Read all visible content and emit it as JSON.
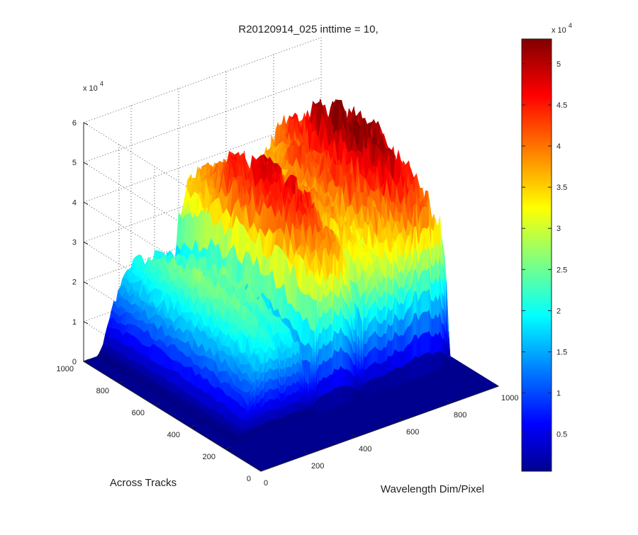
{
  "chart_data": {
    "type": "surface",
    "title": "R20120914_025 inttime = 10,",
    "xlabel": "Wavelength Dim/Pixel",
    "ylabel": "Across Tracks",
    "zlabel": "",
    "x_ticks": [
      "0",
      "200",
      "400",
      "600",
      "800",
      "1000"
    ],
    "y_ticks": [
      "0",
      "200",
      "400",
      "600",
      "800",
      "1000"
    ],
    "z_ticks": [
      "0",
      "1",
      "2",
      "3",
      "4",
      "5",
      "6"
    ],
    "z_multiplier_base": "x 10",
    "z_multiplier_exp": "4",
    "xlim": [
      0,
      1000
    ],
    "ylim": [
      0,
      1000
    ],
    "zlim": [
      0,
      60000
    ],
    "grid": true,
    "colormap": "jet",
    "colorbar": {
      "location": "right",
      "range": [
        500,
        53000
      ],
      "ticks": [
        "0.5",
        "1",
        "1.5",
        "2",
        "2.5",
        "3",
        "3.5",
        "4",
        "4.5",
        "5"
      ],
      "multiplier_base": "x 10",
      "multiplier_exp": "4"
    },
    "surface": {
      "across_track_extent": [
        220,
        1000
      ],
      "wavelength_profile": {
        "x": [
          0,
          20,
          40,
          60,
          80,
          100,
          120,
          140,
          160,
          180,
          200,
          220,
          240,
          260,
          280,
          300,
          320,
          340,
          360,
          380,
          400,
          420,
          440,
          460,
          480,
          500,
          520,
          540,
          560,
          580,
          600,
          620,
          640,
          660,
          680,
          700,
          720,
          740,
          760,
          780,
          800,
          820,
          840,
          860,
          880,
          900,
          920,
          940,
          960,
          980,
          1000
        ],
        "z": [
          0,
          0,
          0,
          0,
          3000,
          9000,
          14000,
          18000,
          21000,
          24000,
          26000,
          27000,
          25000,
          21000,
          23000,
          26000,
          25000,
          16000,
          8000,
          20000,
          35000,
          43000,
          45000,
          46000,
          47000,
          47000,
          46000,
          42000,
          30000,
          18000,
          33000,
          38000,
          40000,
          39000,
          35000,
          40000,
          44000,
          45000,
          43000,
          46000,
          50000,
          53000,
          52000,
          51000,
          50000,
          49000,
          45000,
          38000,
          0,
          0,
          0
        ]
      }
    }
  }
}
